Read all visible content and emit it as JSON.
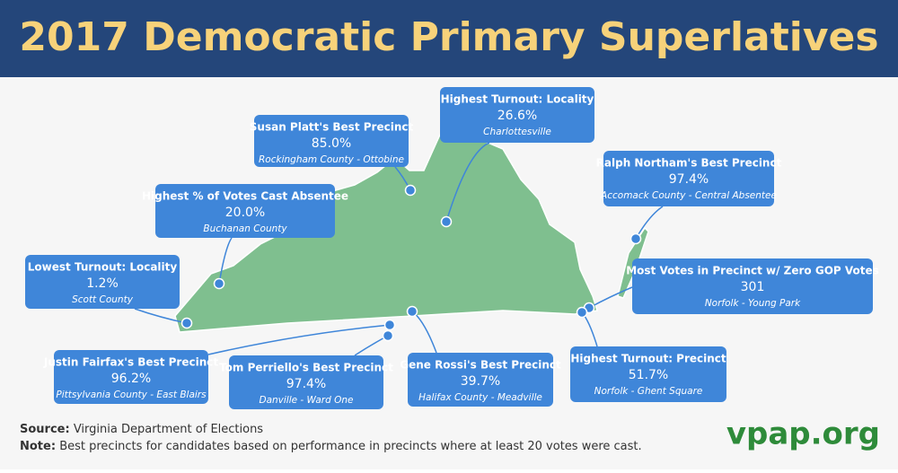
{
  "header": {
    "title": "2017 Democratic Primary Superlatives"
  },
  "callouts": [
    {
      "title": "Highest Turnout: Locality",
      "value": "26.6%",
      "location": "Charlottesville"
    },
    {
      "title": "Susan Platt's Best Precinct",
      "value": "85.0%",
      "location": "Rockingham County - Ottobine"
    },
    {
      "title": "Ralph Northam's Best Precinct",
      "value": "97.4%",
      "location": "Accomack County - Central Absentee"
    },
    {
      "title": "Highest % of Votes Cast Absentee",
      "value": "20.0%",
      "location": "Buchanan County"
    },
    {
      "title": "Lowest Turnout: Locality",
      "value": "1.2%",
      "location": "Scott County"
    },
    {
      "title": "Most Votes in Precinct w/ Zero GOP Votes",
      "value": "301",
      "location": "Norfolk - Young Park"
    },
    {
      "title": "Justin Fairfax's Best Precinct",
      "value": "96.2%",
      "location": "Pittsylvania County - East Blairs"
    },
    {
      "title": "Tom Perriello's Best Precinct",
      "value": "97.4%",
      "location": "Danville - Ward One"
    },
    {
      "title": "Gene Rossi's Best Precinct",
      "value": "39.7%",
      "location": "Halifax County - Meadville"
    },
    {
      "title": "Highest Turnout: Precinct",
      "value": "51.7%",
      "location": "Norfolk - Ghent Square"
    }
  ],
  "footer": {
    "source_label": "Source:",
    "source": "Virginia Department of Elections",
    "note_label": "Note:",
    "note": "Best precincts for candidates based on performance in precincts where at least 20 votes were cast.",
    "logo": "vpap.org"
  }
}
